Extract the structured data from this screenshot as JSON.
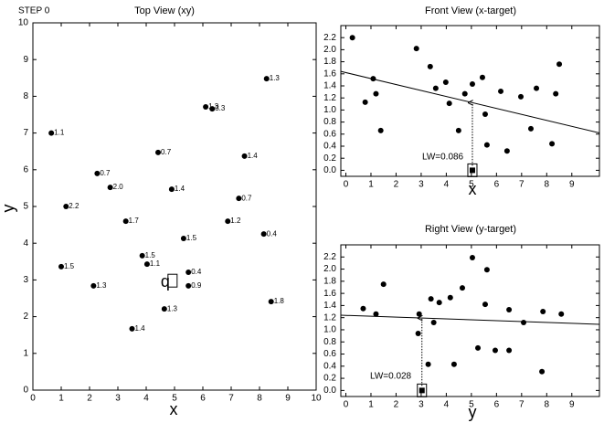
{
  "chart_data": [
    {
      "type": "scatter",
      "annotation": "STEP 0",
      "title": "Top View (xy)",
      "xlabel": "x",
      "ylabel": "y",
      "x": [
        0.65,
        8.25,
        6.1,
        6.33,
        4.42,
        7.47,
        2.27,
        2.73,
        4.9,
        7.27,
        1.17,
        3.28,
        6.88,
        8.15,
        5.32,
        3.86,
        4.03,
        1.0,
        5.49,
        2.14,
        5.49,
        8.41,
        4.64,
        3.5
      ],
      "y": [
        7.0,
        8.48,
        7.71,
        7.66,
        6.47,
        6.37,
        5.9,
        5.52,
        5.47,
        5.22,
        5.0,
        4.6,
        4.6,
        4.25,
        4.13,
        3.66,
        3.43,
        3.36,
        3.21,
        2.84,
        2.84,
        2.41,
        2.21,
        1.67
      ],
      "labels": [
        "1.1",
        "1.3",
        "1.3",
        "3.3",
        "0.7",
        "1.4",
        "0.7",
        "2.0",
        "1.4",
        "0.7",
        "2.2",
        "1.7",
        "1.2",
        "0.4",
        "1.5",
        "1.5",
        "1.1",
        "1.5",
        "0.4",
        "1.3",
        "0.9",
        "1.8",
        "1.3",
        "1.4"
      ],
      "query": {
        "x": 4.93,
        "y": 2.98,
        "label": "q"
      },
      "xlim": [
        0,
        10
      ],
      "ylim": [
        0,
        10
      ],
      "xticks": [
        0,
        1,
        2,
        3,
        4,
        5,
        6,
        7,
        8,
        9,
        10
      ],
      "yticks": [
        0,
        1,
        2,
        3,
        4,
        5,
        6,
        7,
        8,
        9,
        10
      ]
    },
    {
      "type": "scatter",
      "title": "Front View (x-target)",
      "xlabel": "x",
      "annotation": "LW=0.086",
      "x": [
        0.77,
        1.09,
        0.26,
        1.2,
        1.39,
        2.81,
        3.36,
        3.58,
        3.98,
        4.12,
        4.49,
        4.74,
        5.04,
        5.44,
        5.55,
        5.62,
        6.17,
        6.42,
        6.97,
        7.37,
        7.59,
        8.21,
        8.36,
        8.5
      ],
      "y": [
        1.13,
        1.52,
        2.2,
        1.27,
        0.66,
        2.02,
        1.72,
        1.36,
        1.46,
        1.11,
        0.66,
        1.27,
        1.43,
        1.54,
        0.93,
        0.42,
        1.31,
        0.32,
        1.22,
        0.69,
        1.36,
        0.44,
        1.27,
        1.76
      ],
      "fit_line": {
        "x": [
          -0.2,
          10.1
        ],
        "y": [
          1.64,
          0.62
        ]
      },
      "query": {
        "x": 5.04,
        "y": 0
      },
      "xlim": [
        -0.2,
        10.1
      ],
      "ylim": [
        -0.1,
        2.4
      ],
      "xticks": [
        0,
        1,
        2,
        3,
        4,
        5,
        6,
        7,
        8,
        9
      ],
      "yticks": [
        {
          "value": 0,
          "label": "0.0"
        },
        0.2,
        0.4,
        0.6,
        0.8,
        {
          "value": 1,
          "label": "1.0"
        },
        1.2,
        1.4,
        1.6,
        1.8,
        {
          "value": 2,
          "label": "2.0"
        },
        2.2
      ]
    },
    {
      "type": "scatter",
      "title": "Right View (y-target)",
      "xlabel": "y",
      "annotation": "LW=0.028",
      "x": [
        0.69,
        1.2,
        1.5,
        2.92,
        2.88,
        3.28,
        3.39,
        3.5,
        3.72,
        4.16,
        4.31,
        4.64,
        5.04,
        5.26,
        5.55,
        5.62,
        5.95,
        6.5,
        6.5,
        7.08,
        7.81,
        7.85,
        8.58
      ],
      "y": [
        1.35,
        1.26,
        1.75,
        1.26,
        0.94,
        0.43,
        1.51,
        1.12,
        1.45,
        1.53,
        0.43,
        1.69,
        2.19,
        0.7,
        1.42,
        1.99,
        0.66,
        0.66,
        1.33,
        1.12,
        0.31,
        1.3,
        1.26
      ],
      "fit_line": {
        "x": [
          -0.2,
          10.1
        ],
        "y": [
          1.24,
          1.09
        ]
      },
      "query": {
        "x": 3.03,
        "y": 0
      },
      "xlim": [
        -0.2,
        10.1
      ],
      "ylim": [
        -0.1,
        2.4
      ],
      "xticks": [
        0,
        1,
        2,
        3,
        4,
        5,
        6,
        7,
        8,
        9
      ],
      "yticks": [
        {
          "value": 0,
          "label": "0.0"
        },
        0.2,
        0.4,
        0.6,
        0.8,
        {
          "value": 1,
          "label": "1.0"
        },
        1.2,
        1.4,
        1.6,
        1.8,
        {
          "value": 2,
          "label": "2.0"
        },
        2.2
      ]
    }
  ]
}
